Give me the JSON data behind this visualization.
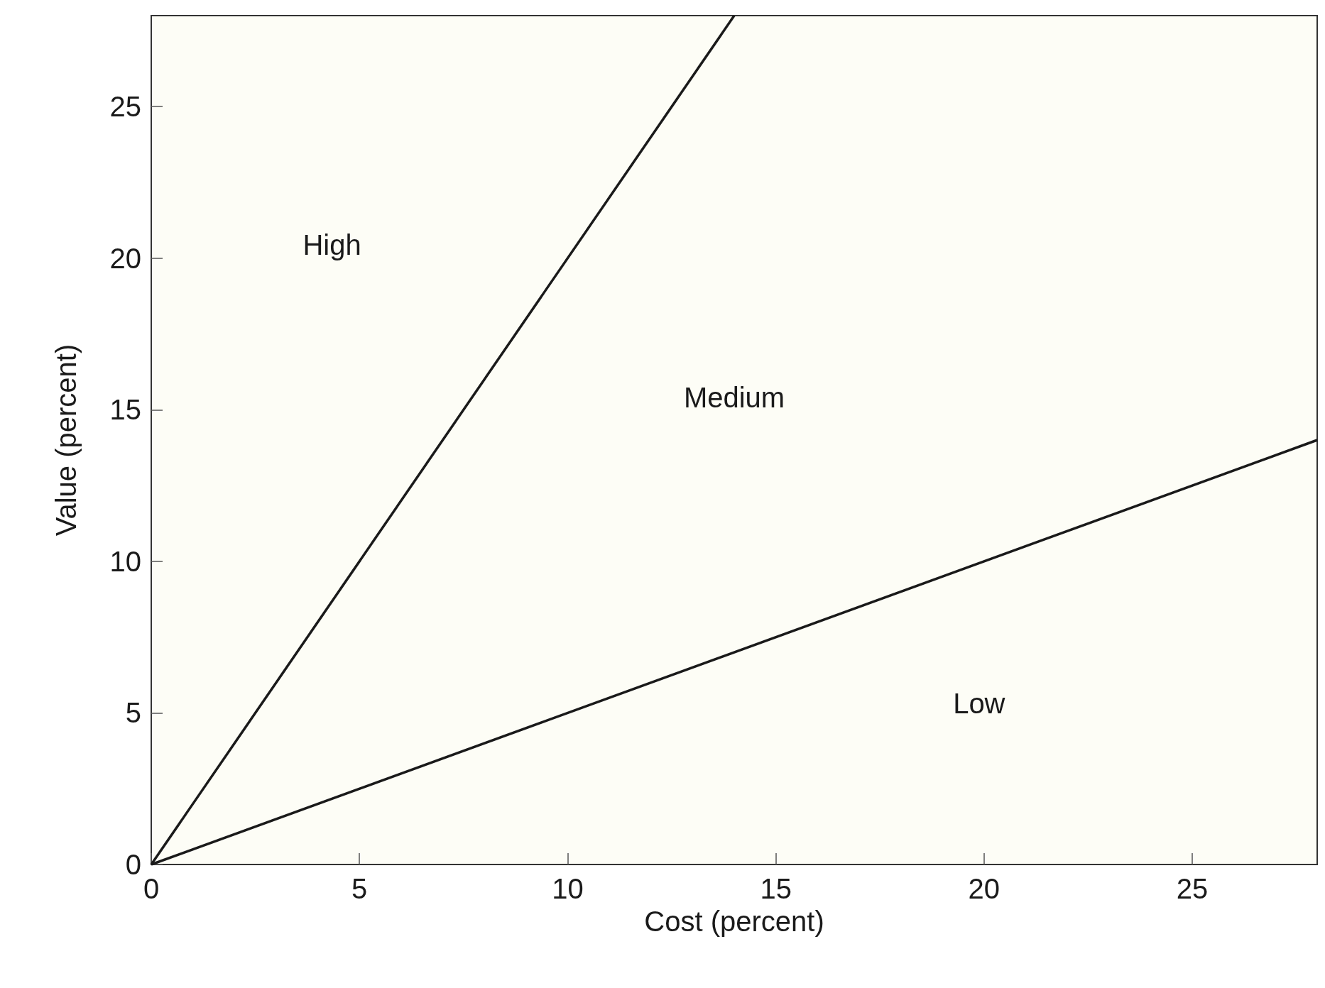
{
  "chart_data": {
    "type": "line",
    "xlabel": "Cost (percent)",
    "ylabel": "Value (percent)",
    "xlim": [
      0,
      28
    ],
    "ylim": [
      0,
      28
    ],
    "xticks": [
      0,
      5,
      10,
      15,
      20,
      25
    ],
    "yticks": [
      0,
      5,
      10,
      15,
      20,
      25
    ],
    "grid": false,
    "marker": "none",
    "line_style": "solid",
    "series": [
      {
        "color": "#1a1a1a",
        "x": [
          0,
          14
        ],
        "values": [
          0,
          28
        ]
      },
      {
        "color": "#1a1a1a",
        "x": [
          0,
          28
        ],
        "values": [
          0,
          14
        ]
      }
    ],
    "annotations": [
      "High",
      "Medium",
      "Low"
    ]
  }
}
